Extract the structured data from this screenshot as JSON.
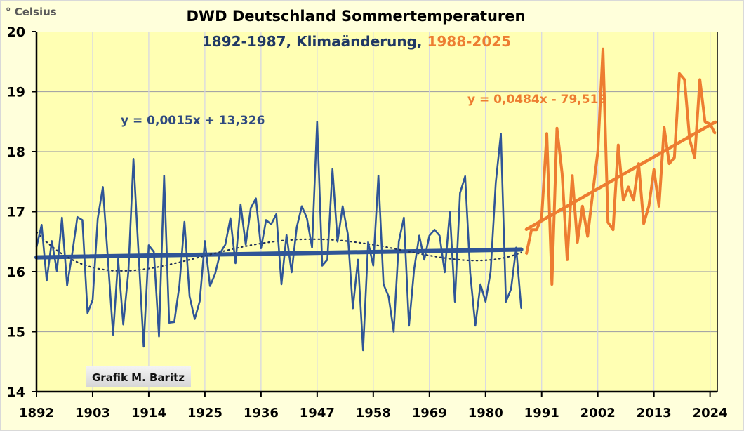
{
  "chart_data": {
    "type": "line",
    "title": "DWD Deutschland Sommertemperaturen",
    "subtitle": {
      "part1": "1892-1987",
      "part2": ", Klimaänderung, ",
      "part3": "1988-2025"
    },
    "ylabel": "° Celsius",
    "xlabel": "",
    "ylim": [
      14,
      20
    ],
    "xlim": [
      1892,
      2025
    ],
    "yticks": [
      "14",
      "15",
      "16",
      "17",
      "18",
      "19",
      "20"
    ],
    "xticks": [
      "1892",
      "1903",
      "1914",
      "1925",
      "1936",
      "1947",
      "1958",
      "1969",
      "1980",
      "1991",
      "2002",
      "2013",
      "2024"
    ],
    "grid": true,
    "colors": {
      "series1": "#2F5597",
      "series2": "#ED7D31",
      "plot_bg": "#FFFFB3",
      "outer_bg": "#FFFFDB",
      "title_navy": "#1F3864"
    },
    "series": [
      {
        "start_year": 1892,
        "values": [
          16.41,
          16.78,
          15.85,
          16.51,
          16.01,
          16.9,
          15.77,
          16.3,
          16.91,
          16.86,
          15.31,
          15.53,
          16.88,
          17.41,
          16.2,
          14.95,
          16.21,
          15.12,
          16.0,
          17.88,
          16.3,
          14.75,
          16.44,
          16.33,
          14.92,
          17.6,
          15.15,
          15.16,
          15.77,
          16.83,
          15.59,
          15.21,
          15.51,
          16.51,
          15.76,
          15.96,
          16.31,
          16.45,
          16.89,
          16.14,
          17.12,
          16.45,
          17.06,
          17.22,
          16.39,
          16.86,
          16.79,
          16.96,
          15.79,
          16.61,
          15.99,
          16.74,
          17.09,
          16.89,
          16.4,
          18.5,
          16.1,
          16.2,
          17.71,
          16.5,
          17.09,
          16.63,
          15.39,
          16.2,
          14.69,
          16.49,
          16.1,
          17.6,
          15.79,
          15.59,
          15.0,
          16.5,
          16.9,
          15.1,
          16.04,
          16.6,
          16.2,
          16.6,
          16.7,
          16.6,
          15.99,
          17.0,
          15.5,
          17.31,
          17.59,
          15.98,
          15.1,
          15.79,
          15.5,
          16.0,
          17.48,
          18.3,
          15.5,
          15.71,
          16.4,
          15.39
        ],
        "trendline": "y = 0,0015x + 13,326",
        "poly_trend": true
      },
      {
        "start_year": 1988,
        "values": [
          16.29,
          16.7,
          16.7,
          16.9,
          18.3,
          15.79,
          18.39,
          17.64,
          16.2,
          17.6,
          16.49,
          17.09,
          16.59,
          17.3,
          18.0,
          19.71,
          16.82,
          16.7,
          18.11,
          17.19,
          17.41,
          17.19,
          17.8,
          16.8,
          17.09,
          17.7,
          17.09,
          18.4,
          17.8,
          17.9,
          19.3,
          19.2,
          18.2,
          17.9,
          19.2,
          18.5,
          18.46,
          18.3
        ],
        "trendline": "y = 0,0484x - 79,513"
      }
    ],
    "watermark": "Grafik M. Baritz"
  }
}
